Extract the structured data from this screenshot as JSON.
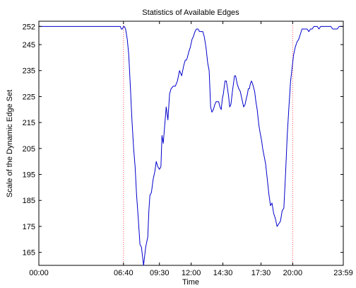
{
  "chart_data": {
    "type": "line",
    "title": "Statistics of Available Edges",
    "xlabel": "Time",
    "ylabel": "Scale of the Dynamic Edge Set",
    "x_unit": "minutes of day",
    "xlim": [
      0,
      1439
    ],
    "ylim": [
      160,
      254
    ],
    "x_ticks": [
      {
        "value": 0,
        "label": "00:00"
      },
      {
        "value": 400,
        "label": "06:40"
      },
      {
        "value": 570,
        "label": "09:30"
      },
      {
        "value": 720,
        "label": "12:00"
      },
      {
        "value": 870,
        "label": "14:30"
      },
      {
        "value": 1050,
        "label": "17:30"
      },
      {
        "value": 1200,
        "label": "20:00"
      },
      {
        "value": 1439,
        "label": "23:59"
      }
    ],
    "y_ticks": [
      165,
      175,
      185,
      195,
      205,
      215,
      225,
      235,
      245,
      252
    ],
    "vlines": [
      400,
      1200
    ],
    "line_color": "#0000cc",
    "vline_color": "#ff4d4d",
    "series": [
      {
        "name": "",
        "color": "#0000cc",
        "x": [
          0,
          380,
          385,
          390,
          395,
          400,
          404,
          410,
          418,
          425,
          433,
          440,
          448,
          455,
          462,
          470,
          478,
          485,
          495,
          505,
          515,
          520,
          525,
          532,
          540,
          548,
          555,
          562,
          570,
          577,
          582,
          588,
          595,
          602,
          610,
          618,
          625,
          635,
          645,
          655,
          665,
          675,
          685,
          692,
          697,
          702,
          708,
          716,
          724,
          730,
          738,
          745,
          752,
          760,
          768,
          775,
          782,
          790,
          798,
          805,
          812,
          818,
          825,
          832,
          838,
          844,
          850,
          856,
          862,
          867,
          872,
          880,
          886,
          892,
          897,
          902,
          908,
          915,
          920,
          925,
          930,
          937,
          945,
          952,
          960,
          968,
          975,
          980,
          986,
          990,
          995,
          1000,
          1005,
          1010,
          1020,
          1026,
          1032,
          1040,
          1046,
          1053,
          1058,
          1065,
          1072,
          1080,
          1088,
          1095,
          1102,
          1110,
          1118,
          1126,
          1134,
          1142,
          1150,
          1158,
          1166,
          1174,
          1182,
          1190,
          1197,
          1204,
          1212,
          1220,
          1228,
          1236,
          1244,
          1252,
          1260,
          1268,
          1276,
          1284,
          1292,
          1300,
          1308,
          1316,
          1324,
          1332,
          1340,
          1348,
          1356,
          1364,
          1372,
          1380,
          1389,
          1398,
          1410,
          1420,
          1430,
          1439
        ],
        "values": [
          252,
          252,
          252,
          251,
          251,
          252,
          252,
          251,
          247,
          241,
          228,
          216,
          205,
          198,
          187,
          178,
          168,
          167,
          160,
          167,
          171,
          181,
          187,
          188,
          193,
          196,
          200,
          198,
          197,
          198,
          210,
          207,
          214,
          221,
          216,
          226,
          228,
          229,
          229,
          231,
          235,
          233,
          237,
          239,
          239,
          240,
          242,
          244,
          247,
          248,
          250,
          251,
          251,
          250,
          250,
          250,
          248,
          244,
          238,
          235,
          221,
          219,
          220,
          222,
          223,
          223,
          223,
          221,
          220,
          224,
          226,
          231,
          231,
          228,
          225,
          221,
          222,
          227,
          230,
          233,
          233,
          230,
          228,
          227,
          224,
          221,
          222,
          224,
          226,
          228,
          228,
          230,
          231,
          230,
          227,
          223,
          220,
          214,
          211,
          208,
          205,
          202,
          199,
          193,
          187,
          183,
          184,
          180,
          178,
          175,
          176,
          177,
          181,
          182,
          195,
          210,
          221,
          231,
          236,
          241,
          244,
          246,
          247,
          249,
          251,
          251,
          251,
          251,
          250,
          251,
          251,
          252,
          252,
          252,
          251,
          252,
          252,
          252,
          252,
          252,
          252,
          252,
          251,
          251,
          251,
          252,
          252,
          252
        ]
      }
    ]
  }
}
